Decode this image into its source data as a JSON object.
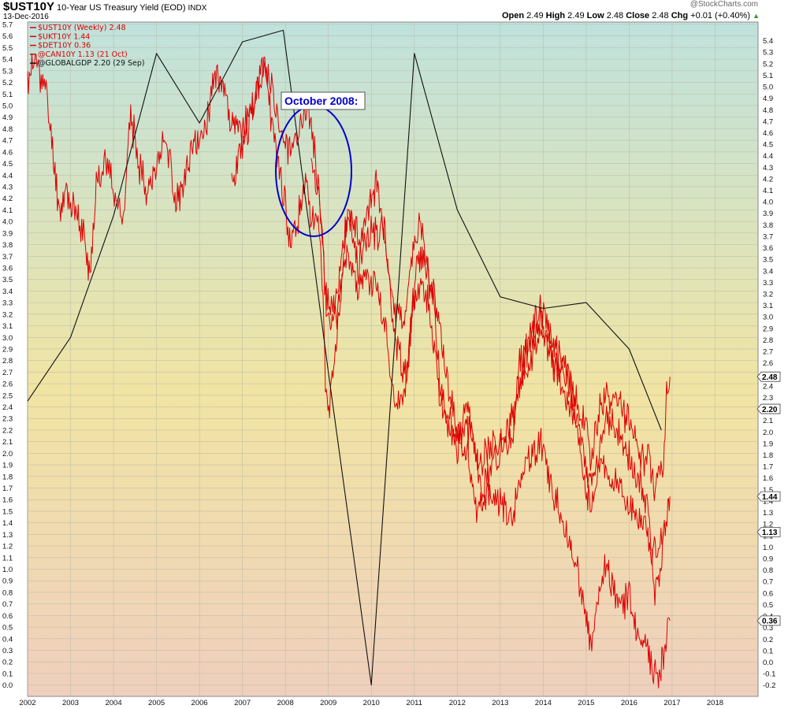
{
  "header": {
    "symbol": "$UST10Y",
    "description": "10-Year US Treasury Yield (EOD)",
    "exchange": "INDX",
    "date": "13-Dec-2016",
    "watermark": "@StockCharts.com",
    "quote": {
      "open_label": "Open",
      "open": "2.49",
      "high_label": "High",
      "high": "2.49",
      "low_label": "Low",
      "low": "2.48",
      "close_label": "Close",
      "close": "2.48",
      "chg_label": "Chg",
      "chg": "+0.01 (+0.40%)",
      "chg_arrow": "▲"
    }
  },
  "annotation": {
    "text": "October 2008:"
  },
  "colors": {
    "red": "#dd0000",
    "black": "#111111",
    "annotation": "#0000cc",
    "bg_top": "#bfe2dd",
    "bg_mid": "#f1e4a3",
    "bg_bottom": "#efcfbd"
  },
  "chart_data": {
    "type": "line",
    "ylim_left": [
      -0.05,
      5.7
    ],
    "ylim_right": [
      -0.25,
      5.5
    ],
    "yticks_left": [
      "5.7",
      "5.6",
      "5.5",
      "5.4",
      "5.3",
      "5.2",
      "5.1",
      "5.0",
      "4.9",
      "4.8",
      "4.7",
      "4.6",
      "4.5",
      "4.4",
      "4.3",
      "4.2",
      "4.1",
      "4.0",
      "3.9",
      "3.8",
      "3.7",
      "3.6",
      "3.5",
      "3.4",
      "3.3",
      "3.2",
      "3.1",
      "3.0",
      "2.9",
      "2.8",
      "2.7",
      "2.6",
      "2.5",
      "2.4",
      "2.3",
      "2.2",
      "2.1",
      "2.0",
      "1.9",
      "1.8",
      "1.7",
      "1.6",
      "1.5",
      "1.4",
      "1.3",
      "1.2",
      "1.1",
      "1.0",
      "0.9",
      "0.8",
      "0.7",
      "0.6",
      "0.5",
      "0.4",
      "0.3",
      "0.2",
      "0.1",
      "0.0"
    ],
    "yticks_right": [
      "5.4",
      "5.3",
      "5.2",
      "5.1",
      "5.0",
      "4.9",
      "4.8",
      "4.7",
      "4.6",
      "4.5",
      "4.4",
      "4.3",
      "4.2",
      "4.1",
      "4.0",
      "3.9",
      "3.8",
      "3.7",
      "3.6",
      "3.5",
      "3.4",
      "3.3",
      "3.2",
      "3.1",
      "3.0",
      "2.9",
      "2.8",
      "2.7",
      "2.6",
      "2.5",
      "2.4",
      "2.3",
      "2.2",
      "2.1",
      "2.0",
      "1.9",
      "1.8",
      "1.7",
      "1.6",
      "1.5",
      "1.4",
      "1.3",
      "1.2",
      "1.1",
      "1.0",
      "0.9",
      "0.8",
      "0.7",
      "0.6",
      "0.5",
      "0.4",
      "0.3",
      "0.2",
      "0.1",
      "0.0",
      "-0.1",
      "-0.2"
    ],
    "xlim": [
      2002.0,
      2019.0
    ],
    "xticks": [
      "2002",
      "2003",
      "2004",
      "2005",
      "2006",
      "2007",
      "2008",
      "2009",
      "2010",
      "2011",
      "2012",
      "2013",
      "2014",
      "2015",
      "2016",
      "2017",
      "2018"
    ],
    "grid": true,
    "legend": {
      "placement": "top-left",
      "entries": [
        {
          "label": "$UST10Y (Weekly) 2.48",
          "color": "#dd0000"
        },
        {
          "label": "$UKT10Y 1.44",
          "color": "#dd0000"
        },
        {
          "label": "$DET10Y 0.36",
          "color": "#dd0000"
        },
        {
          "label": "@CAN10Y 1.13 (21 Oct)",
          "color": "#dd0000"
        },
        {
          "label": "@GLOBALGDP 2.20 (29 Sep)",
          "color": "#111111"
        }
      ]
    },
    "end_labels": [
      {
        "text": "2.48",
        "value": 2.48
      },
      {
        "text": "2.20",
        "value": 2.2
      },
      {
        "text": "1.44",
        "value": 1.44
      },
      {
        "text": "1.13",
        "value": 1.13
      },
      {
        "text": "0.36",
        "value": 0.36
      }
    ],
    "series": [
      {
        "name": "$UST10Y (Weekly) 2.48",
        "color": "#dd0000",
        "axis": "right",
        "noise": 0.13,
        "seed": 11,
        "points": [
          [
            2002.0,
            5.05
          ],
          [
            2002.2,
            5.25
          ],
          [
            2002.45,
            4.9
          ],
          [
            2002.6,
            4.4
          ],
          [
            2002.75,
            3.9
          ],
          [
            2002.9,
            4.1
          ],
          [
            2003.1,
            3.9
          ],
          [
            2003.3,
            3.75
          ],
          [
            2003.45,
            3.3
          ],
          [
            2003.6,
            4.2
          ],
          [
            2003.8,
            4.35
          ],
          [
            2004.0,
            4.15
          ],
          [
            2004.2,
            3.8
          ],
          [
            2004.4,
            4.75
          ],
          [
            2004.55,
            4.4
          ],
          [
            2004.8,
            4.1
          ],
          [
            2005.0,
            4.3
          ],
          [
            2005.2,
            4.6
          ],
          [
            2005.45,
            4.0
          ],
          [
            2005.6,
            4.1
          ],
          [
            2005.9,
            4.5
          ],
          [
            2006.1,
            4.6
          ],
          [
            2006.4,
            5.15
          ],
          [
            2006.55,
            5.05
          ],
          [
            2006.75,
            4.65
          ],
          [
            2006.9,
            4.6
          ],
          [
            2007.1,
            4.7
          ],
          [
            2007.4,
            5.0
          ],
          [
            2007.5,
            5.25
          ],
          [
            2007.7,
            4.65
          ],
          [
            2007.9,
            4.2
          ],
          [
            2008.1,
            3.7
          ],
          [
            2008.3,
            3.85
          ],
          [
            2008.45,
            4.2
          ],
          [
            2008.6,
            3.85
          ],
          [
            2008.8,
            3.8
          ],
          [
            2008.95,
            2.3
          ],
          [
            2009.05,
            2.3
          ],
          [
            2009.2,
            2.8
          ],
          [
            2009.45,
            3.9
          ],
          [
            2009.7,
            3.45
          ],
          [
            2009.9,
            3.75
          ],
          [
            2010.15,
            3.7
          ],
          [
            2010.3,
            3.85
          ],
          [
            2010.5,
            2.95
          ],
          [
            2010.75,
            2.5
          ],
          [
            2010.85,
            2.6
          ],
          [
            2011.05,
            3.4
          ],
          [
            2011.2,
            3.55
          ],
          [
            2011.45,
            3.2
          ],
          [
            2011.6,
            2.4
          ],
          [
            2011.8,
            2.1
          ],
          [
            2011.95,
            1.95
          ],
          [
            2012.1,
            2.0
          ],
          [
            2012.35,
            2.0
          ],
          [
            2012.55,
            1.5
          ],
          [
            2012.75,
            1.65
          ],
          [
            2013.0,
            1.9
          ],
          [
            2013.3,
            1.9
          ],
          [
            2013.45,
            2.6
          ],
          [
            2013.7,
            2.8
          ],
          [
            2013.95,
            2.95
          ],
          [
            2014.2,
            2.7
          ],
          [
            2014.5,
            2.55
          ],
          [
            2014.75,
            2.3
          ],
          [
            2014.95,
            2.15
          ],
          [
            2015.1,
            1.75
          ],
          [
            2015.3,
            2.2
          ],
          [
            2015.55,
            2.3
          ],
          [
            2015.8,
            2.2
          ],
          [
            2016.0,
            2.1
          ],
          [
            2016.25,
            1.75
          ],
          [
            2016.45,
            1.8
          ],
          [
            2016.55,
            1.55
          ],
          [
            2016.7,
            1.6
          ],
          [
            2016.8,
            1.75
          ],
          [
            2016.87,
            2.3
          ],
          [
            2016.95,
            2.48
          ]
        ]
      },
      {
        "name": "$UKT10Y 1.44",
        "color": "#dd0000",
        "axis": "right",
        "noise": 0.13,
        "seed": 23,
        "points": [
          [
            2006.75,
            4.1
          ],
          [
            2006.9,
            4.35
          ],
          [
            2007.1,
            4.6
          ],
          [
            2007.3,
            4.9
          ],
          [
            2007.5,
            5.2
          ],
          [
            2007.7,
            4.95
          ],
          [
            2007.9,
            4.6
          ],
          [
            2008.1,
            4.45
          ],
          [
            2008.3,
            4.6
          ],
          [
            2008.45,
            4.9
          ],
          [
            2008.6,
            4.7
          ],
          [
            2008.8,
            4.0
          ],
          [
            2008.95,
            3.2
          ],
          [
            2009.05,
            3.0
          ],
          [
            2009.2,
            3.2
          ],
          [
            2009.45,
            3.9
          ],
          [
            2009.7,
            3.7
          ],
          [
            2009.9,
            3.9
          ],
          [
            2010.15,
            4.2
          ],
          [
            2010.35,
            3.5
          ],
          [
            2010.55,
            3.1
          ],
          [
            2010.75,
            2.9
          ],
          [
            2010.95,
            3.6
          ],
          [
            2011.15,
            3.8
          ],
          [
            2011.35,
            3.4
          ],
          [
            2011.6,
            2.9
          ],
          [
            2011.8,
            2.4
          ],
          [
            2012.0,
            2.0
          ],
          [
            2012.25,
            2.2
          ],
          [
            2012.45,
            1.7
          ],
          [
            2012.7,
            1.85
          ],
          [
            2013.0,
            1.9
          ],
          [
            2013.3,
            2.1
          ],
          [
            2013.45,
            2.4
          ],
          [
            2013.7,
            2.9
          ],
          [
            2013.95,
            3.05
          ],
          [
            2014.2,
            2.8
          ],
          [
            2014.5,
            2.6
          ],
          [
            2014.8,
            2.1
          ],
          [
            2015.0,
            1.65
          ],
          [
            2015.15,
            1.55
          ],
          [
            2015.4,
            2.0
          ],
          [
            2015.55,
            2.1
          ],
          [
            2015.8,
            1.95
          ],
          [
            2016.0,
            1.8
          ],
          [
            2016.2,
            1.55
          ],
          [
            2016.45,
            1.35
          ],
          [
            2016.58,
            0.6
          ],
          [
            2016.7,
            0.75
          ],
          [
            2016.8,
            1.1
          ],
          [
            2016.9,
            1.35
          ],
          [
            2016.95,
            1.44
          ]
        ]
      },
      {
        "name": "$DET10Y 0.36",
        "color": "#dd0000",
        "axis": "right",
        "noise": 0.12,
        "seed": 37,
        "points": [
          [
            2008.6,
            4.3
          ],
          [
            2008.8,
            3.95
          ],
          [
            2008.95,
            3.1
          ],
          [
            2009.05,
            2.95
          ],
          [
            2009.2,
            3.05
          ],
          [
            2009.45,
            3.6
          ],
          [
            2009.7,
            3.25
          ],
          [
            2009.9,
            3.35
          ],
          [
            2010.15,
            3.25
          ],
          [
            2010.35,
            2.85
          ],
          [
            2010.55,
            2.25
          ],
          [
            2010.75,
            2.3
          ],
          [
            2010.95,
            3.0
          ],
          [
            2011.15,
            3.35
          ],
          [
            2011.35,
            3.1
          ],
          [
            2011.6,
            2.3
          ],
          [
            2011.8,
            2.0
          ],
          [
            2012.0,
            1.85
          ],
          [
            2012.25,
            1.8
          ],
          [
            2012.45,
            1.3
          ],
          [
            2012.7,
            1.45
          ],
          [
            2013.0,
            1.4
          ],
          [
            2013.3,
            1.25
          ],
          [
            2013.45,
            1.6
          ],
          [
            2013.7,
            1.8
          ],
          [
            2013.95,
            1.9
          ],
          [
            2014.2,
            1.5
          ],
          [
            2014.5,
            1.2
          ],
          [
            2014.8,
            0.8
          ],
          [
            2015.0,
            0.4
          ],
          [
            2015.15,
            0.12
          ],
          [
            2015.3,
            0.6
          ],
          [
            2015.45,
            0.85
          ],
          [
            2015.6,
            0.7
          ],
          [
            2015.8,
            0.5
          ],
          [
            2016.0,
            0.55
          ],
          [
            2016.2,
            0.2
          ],
          [
            2016.45,
            0.1
          ],
          [
            2016.55,
            -0.15
          ],
          [
            2016.7,
            -0.1
          ],
          [
            2016.8,
            0.05
          ],
          [
            2016.95,
            0.36
          ]
        ]
      },
      {
        "name": "@CAN10Y 1.13 (21 Oct)",
        "color": "#dd0000",
        "axis": "right",
        "noise": 0.11,
        "seed": 53,
        "points": [
          [
            2013.5,
            2.5
          ],
          [
            2013.7,
            2.6
          ],
          [
            2013.95,
            2.9
          ],
          [
            2014.2,
            2.6
          ],
          [
            2014.5,
            2.35
          ],
          [
            2014.8,
            2.05
          ],
          [
            2015.0,
            1.45
          ],
          [
            2015.15,
            1.35
          ],
          [
            2015.35,
            1.75
          ],
          [
            2015.55,
            1.6
          ],
          [
            2015.8,
            1.5
          ],
          [
            2016.0,
            1.35
          ],
          [
            2016.2,
            1.25
          ],
          [
            2016.4,
            1.15
          ],
          [
            2016.55,
            0.95
          ],
          [
            2016.68,
            1.05
          ],
          [
            2016.8,
            1.13
          ]
        ]
      },
      {
        "name": "@GLOBALGDP 2.20 (29 Sep)",
        "color": "#111111",
        "axis": "left",
        "noise": 0,
        "seed": 0,
        "points": [
          [
            2002.0,
            2.45
          ],
          [
            2003.0,
            3.0
          ],
          [
            2004.0,
            4.05
          ],
          [
            2005.0,
            5.45
          ],
          [
            2006.0,
            4.85
          ],
          [
            2007.0,
            5.55
          ],
          [
            2007.95,
            5.65
          ],
          [
            2009.0,
            2.7
          ],
          [
            2010.0,
            0.0
          ],
          [
            2011.0,
            5.45
          ],
          [
            2012.0,
            4.1
          ],
          [
            2013.0,
            3.35
          ],
          [
            2014.0,
            3.25
          ],
          [
            2015.0,
            3.3
          ],
          [
            2016.0,
            2.9
          ],
          [
            2016.75,
            2.2
          ]
        ]
      }
    ]
  }
}
